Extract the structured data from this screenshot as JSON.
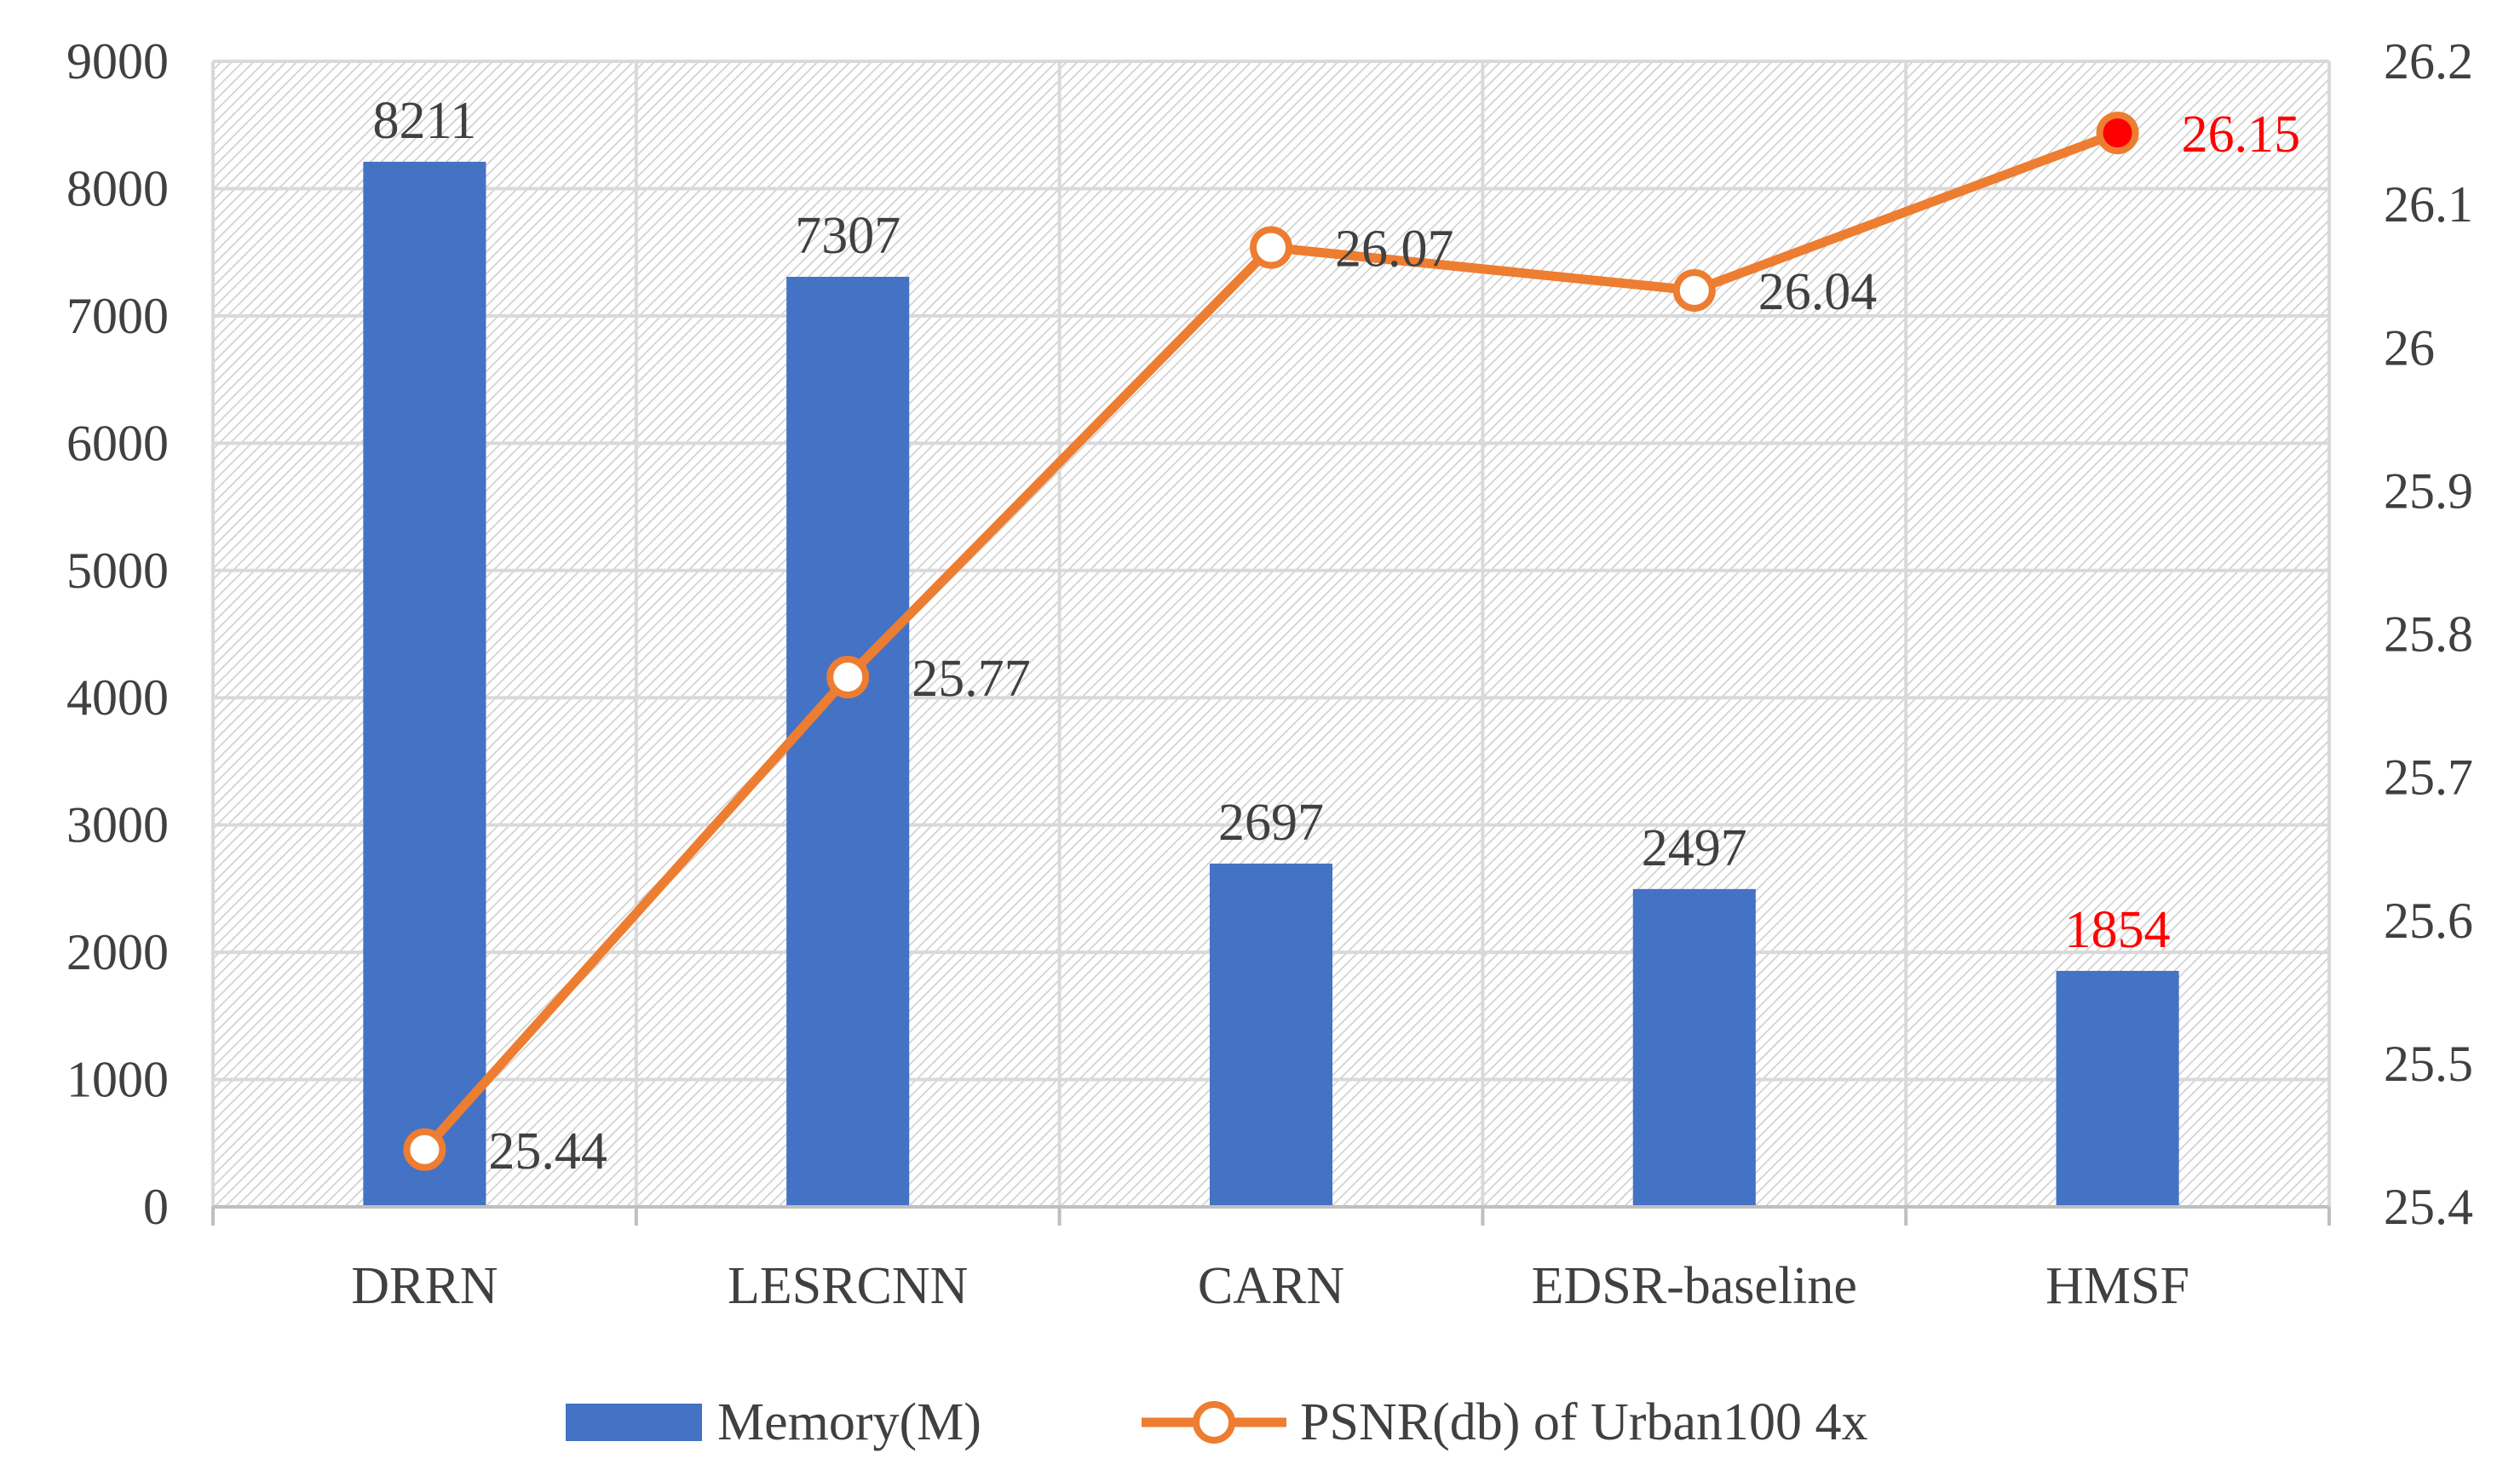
{
  "chart_data": {
    "type": "bar",
    "categories": [
      "DRRN",
      "LESRCNN",
      "CARN",
      "EDSR-baseline",
      "HMSF"
    ],
    "series": [
      {
        "name": "Memory(M)",
        "type": "bar",
        "axis": "left",
        "values": [
          8211,
          7307,
          2697,
          2497,
          1854
        ],
        "labels": [
          "8211",
          "7307",
          "2697",
          "2497",
          "1854"
        ],
        "color": "#4472C4"
      },
      {
        "name": "PSNR(db) of Urban100 4x",
        "type": "line",
        "axis": "right",
        "values": [
          25.44,
          25.77,
          26.07,
          26.04,
          26.15
        ],
        "labels": [
          "25.44",
          "25.77",
          "26.07",
          "26.04",
          "26.15"
        ],
        "color": "#ED7D31"
      }
    ],
    "y_left": {
      "range": [
        0,
        9000
      ],
      "ticks": [
        "0",
        "1000",
        "2000",
        "3000",
        "4000",
        "5000",
        "6000",
        "7000",
        "8000",
        "9000"
      ]
    },
    "y_right": {
      "range": [
        25.4,
        26.2
      ],
      "ticks": [
        "25.4",
        "25.5",
        "25.6",
        "25.7",
        "25.8",
        "25.9",
        "26",
        "26.1",
        "26.2"
      ]
    },
    "highlight": {
      "category": "HMSF",
      "color": "#FF0000"
    },
    "grid": true,
    "legend": "bottom"
  }
}
